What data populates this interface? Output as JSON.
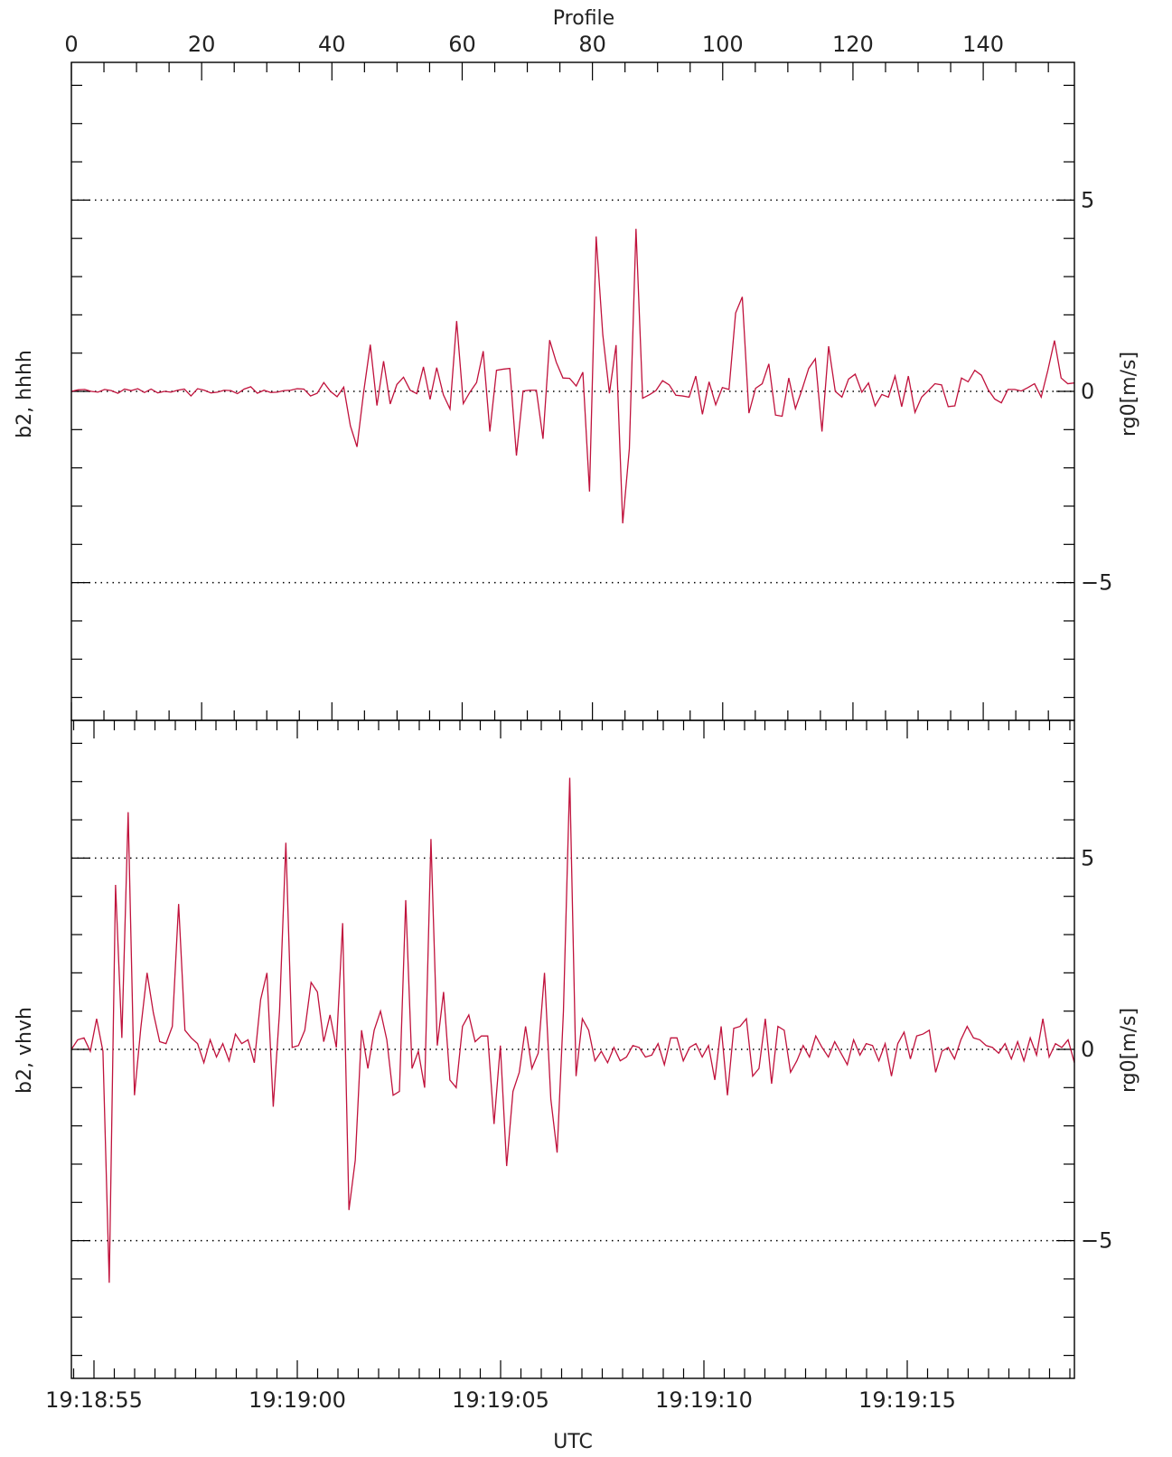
{
  "colors": {
    "series": "#c0123c",
    "frame": "#000000",
    "reference": "#000000"
  },
  "chart_data": [
    {
      "type": "line",
      "panel_label": "b2, hhhh",
      "ylabel": "rg0[m/s]",
      "x_top_label": "Profile",
      "x_top_ticks": [
        "0",
        "20",
        "40",
        "60",
        "80",
        "100",
        "120",
        "140"
      ],
      "x_top_range": [
        0,
        154
      ],
      "ylim": [
        -8.6,
        8.6
      ],
      "y_ticks": [
        "5",
        "0",
        "-5"
      ],
      "reference_lines": [
        5,
        0,
        -5
      ],
      "grid": false,
      "series": [
        {
          "values": [
            0,
            0.04,
            0.05,
            0,
            -0.02,
            0.05,
            0.02,
            -0.05,
            0.06,
            0.02,
            0.07,
            -0.03,
            0.06,
            -0.04,
            0,
            -0.02,
            0.03,
            0.06,
            -0.12,
            0.07,
            0.03,
            -0.04,
            -0.02,
            0.03,
            0.02,
            -0.06,
            0.06,
            0.12,
            -0.05,
            0.03,
            -0.03,
            -0.02,
            0.02,
            0.03,
            0.07,
            0.06,
            -0.12,
            -0.05,
            0.23,
            0,
            -0.14,
            0.11,
            -0.9,
            -1.45,
            -0.02,
            1.22,
            -0.37,
            0.79,
            -0.33,
            0.18,
            0.37,
            0.03,
            -0.06,
            0.64,
            -0.21,
            0.62,
            -0.09,
            -0.46,
            1.84,
            -0.32,
            -0.02,
            0.23,
            1.05,
            -1.05,
            0.55,
            0.58,
            0.6,
            -1.68,
            0.01,
            0.03,
            0.03,
            -1.24,
            1.34,
            0.76,
            0.35,
            0.34,
            0.14,
            0.5,
            -2.62,
            4.05,
            1.48,
            -0.05,
            1.21,
            -3.45,
            -1.5,
            4.25,
            -0.18,
            -0.09,
            0.02,
            0.28,
            0.17,
            -0.1,
            -0.12,
            -0.15,
            0.4,
            -0.6,
            0.25,
            -0.35,
            0.1,
            0.05,
            2.05,
            2.47,
            -0.57,
            0.08,
            0.2,
            0.72,
            -0.62,
            -0.65,
            0.35,
            -0.45,
            0.05,
            0.6,
            0.85,
            -1.05,
            1.18,
            0,
            -0.15,
            0.32,
            0.45,
            -0.02,
            0.22,
            -0.38,
            -0.08,
            -0.15,
            0.4,
            -0.4,
            0.4,
            -0.55,
            -0.15,
            0.02,
            0.2,
            0.17,
            -0.4,
            -0.38,
            0.35,
            0.25,
            0.55,
            0.42,
            0.05,
            -0.2,
            -0.3,
            0.05,
            0.05,
            0.01,
            0.1,
            0.2,
            -0.15,
            0.55,
            1.33,
            0.35,
            0.2,
            0.22
          ]
        }
      ]
    },
    {
      "type": "line",
      "panel_label": "b2, vhvh",
      "ylabel": "rg0[m/s]",
      "xlabel": "UTC",
      "x_ticks": [
        "19:18:55",
        "19:19:00",
        "19:19:05",
        "19:19:10",
        "19:19:15"
      ],
      "ylim": [
        -8.6,
        8.6
      ],
      "y_ticks": [
        "5",
        "0",
        "-5"
      ],
      "reference_lines": [
        5,
        0,
        -5
      ],
      "grid": false,
      "series": [
        {
          "values": [
            0,
            0.25,
            0.3,
            -0.05,
            0.8,
            -0.05,
            -6.1,
            4.3,
            0.3,
            6.2,
            -1.2,
            0.55,
            2.0,
            0.95,
            0.2,
            0.15,
            0.6,
            3.8,
            0.5,
            0.3,
            0.15,
            -0.35,
            0.25,
            -0.2,
            0.15,
            -0.3,
            0.4,
            0.15,
            0.25,
            -0.35,
            1.3,
            2.0,
            -1.5,
            1.0,
            5.4,
            0.05,
            0.1,
            0.5,
            1.75,
            1.5,
            0.2,
            0.9,
            0.05,
            3.3,
            -4.2,
            -2.9,
            0.5,
            -0.5,
            0.5,
            1.0,
            0.25,
            -1.2,
            -1.1,
            3.9,
            -0.5,
            -0.05,
            -1.0,
            5.5,
            0.1,
            1.5,
            -0.8,
            -1.0,
            0.6,
            0.9,
            0.2,
            0.35,
            0.35,
            -1.95,
            0.1,
            -3.05,
            -1.1,
            -0.6,
            0.6,
            -0.5,
            -0.1,
            2.0,
            -1.3,
            -2.7,
            1.0,
            7.1,
            -0.7,
            0.8,
            0.5,
            -0.3,
            -0.05,
            -0.35,
            0.05,
            -0.3,
            -0.2,
            0.1,
            0.05,
            -0.2,
            -0.15,
            0.15,
            -0.4,
            0.3,
            0.3,
            -0.3,
            0.05,
            0.15,
            -0.2,
            0.1,
            -0.8,
            0.6,
            -1.2,
            0.55,
            0.6,
            0.8,
            -0.7,
            -0.5,
            0.8,
            -0.9,
            0.6,
            0.5,
            -0.6,
            -0.3,
            0.1,
            -0.2,
            0.35,
            0.05,
            -0.2,
            0.2,
            -0.1,
            -0.4,
            0.25,
            -0.15,
            0.15,
            0.1,
            -0.3,
            0.15,
            -0.7,
            0.15,
            0.45,
            -0.25,
            0.35,
            0.4,
            0.5,
            -0.6,
            -0.05,
            0.05,
            -0.25,
            0.25,
            0.6,
            0.3,
            0.25,
            0.1,
            0.05,
            -0.1,
            0.15,
            -0.25,
            0.2,
            -0.3,
            0.3,
            -0.15,
            0.8,
            -0.2,
            0.15,
            0.05,
            0.25,
            -0.35
          ]
        }
      ]
    }
  ]
}
